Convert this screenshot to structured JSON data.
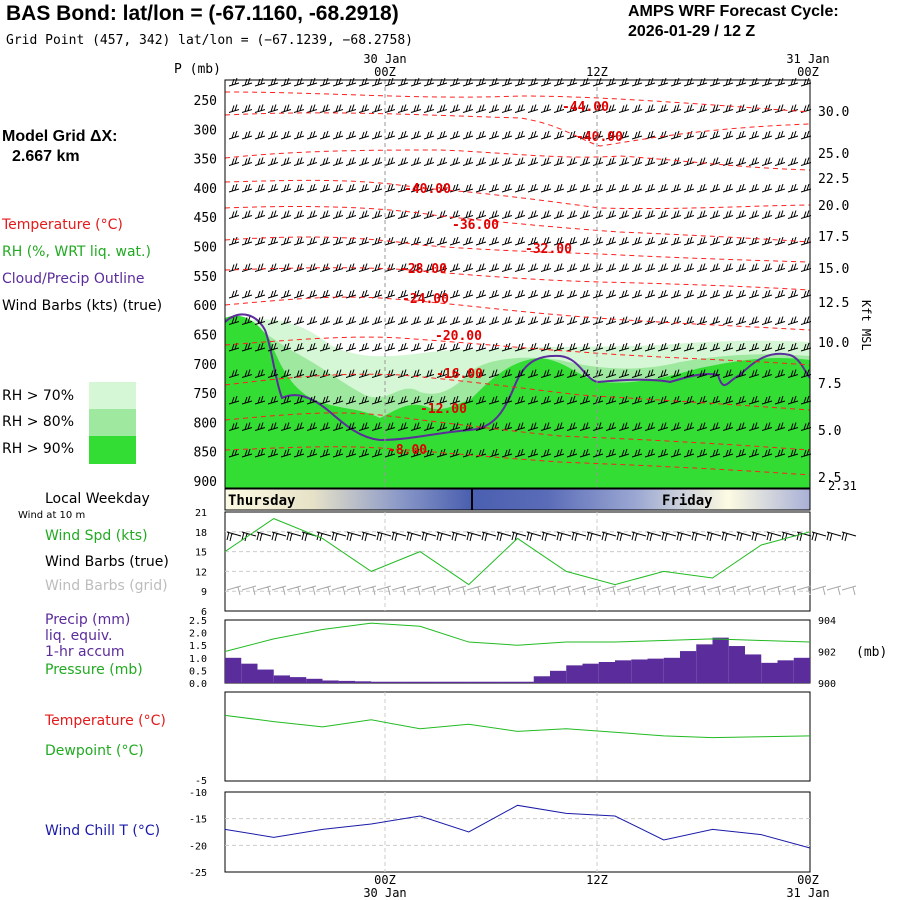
{
  "header": {
    "title": "BAS Bond:  lat/lon = (-67.1160, -68.2918)",
    "grid_point": "Grid Point (457, 342) lat/lon = (−67.1239, −68.2758)",
    "cycle_title": "AMPS WRF Forecast Cycle:",
    "cycle_value": "2026-01-29 / 12  Z"
  },
  "time_axis": {
    "top_dates": [
      "30 Jan",
      "31 Jan"
    ],
    "bottom_dates": [
      "30 Jan",
      "31 Jan"
    ],
    "ticks": [
      "00Z",
      "12Z",
      "00Z"
    ]
  },
  "model_grid": {
    "label": "Model Grid ΔX:",
    "value": "2.667 km"
  },
  "legend": {
    "temperature": "Temperature (°C)",
    "rh": "RH (%, WRT liq. wat.)",
    "cloud": "Cloud/Precip Outline",
    "wind": "Wind Barbs (kts) (true)",
    "rh70": "RH > 70%",
    "rh80": "RH > 80%",
    "rh90": "RH > 90%"
  },
  "colors": {
    "temperature": "#ff0000",
    "rh_line": "#22bb22",
    "cloud": "#5b2c9b",
    "rh70": "#d6f7d6",
    "rh80": "#9fe89f",
    "rh90": "#33dd33",
    "precip": "#5b2c9b",
    "windchill": "#1a1aa8"
  },
  "cross_section": {
    "p_label": "P (mb)",
    "right_label": "Kft MSL",
    "right_bottom_value": "2.31",
    "pressure_levels": [
      "250",
      "300",
      "350",
      "400",
      "450",
      "500",
      "550",
      "600",
      "650",
      "700",
      "750",
      "800",
      "850",
      "900"
    ],
    "height_ticks": [
      "30.0",
      "25.0",
      "22.5",
      "20.0",
      "17.5",
      "15.0",
      "12.5",
      "10.0",
      "7.5",
      "5.0",
      "2.5"
    ],
    "isotherm_labels": [
      "-44.00",
      "-40.00",
      "-40.00",
      "-36.00",
      "-32.00",
      "-28.00",
      "-24.00",
      "-20.00",
      "-16.00",
      "-12.00",
      "-8.00"
    ]
  },
  "weekday": {
    "label": "Local Weekday",
    "sub": "Wind at 10 m",
    "day1": "Thursday",
    "day2": "Friday"
  },
  "panel_wind": {
    "label1": "Wind Spd (kts)",
    "label2": "Wind Barbs (true)",
    "label3": "Wind Barbs (grid)",
    "yticks": [
      "21",
      "18",
      "15",
      "12",
      "9",
      "6"
    ]
  },
  "panel_precip": {
    "label1": "Precip (mm)",
    "label2": "liq. equiv.",
    "label3": "1-hr accum",
    "label4": "Pressure (mb)",
    "yticks": [
      "2.5",
      "2.0",
      "1.5",
      "1.0",
      "0.5",
      "0.0"
    ],
    "right_ticks": [
      "904",
      "902",
      "900"
    ],
    "right_unit": "(mb)"
  },
  "panel_temp": {
    "label1": "Temperature (°C)",
    "label2": "Dewpoint (°C)",
    "ytick": "-5"
  },
  "panel_chill": {
    "label": "Wind Chill T (°C)",
    "yticks": [
      "-10",
      "-15",
      "-20",
      "-25"
    ]
  },
  "chart_data": {
    "type": "line",
    "forecast_hours": [
      0,
      3,
      6,
      9,
      12,
      15,
      18,
      21,
      24,
      27,
      30,
      33,
      36
    ],
    "wind_speed_kts": [
      15,
      20,
      17,
      12,
      15,
      10,
      17,
      12,
      10,
      12,
      11,
      16,
      18
    ],
    "precip_mm": [
      1.0,
      0.3,
      0.1,
      0.05,
      0.05,
      0.05,
      0.05,
      0.7,
      0.9,
      1.0,
      1.8,
      0.8,
      1.1
    ],
    "pressure_mb": [
      902.0,
      902.8,
      903.4,
      903.8,
      903.6,
      902.6,
      902.4,
      902.6,
      902.6,
      902.7,
      902.8,
      902.7,
      902.6
    ],
    "temperature_c": [
      -5.5,
      -6.2,
      -6.8,
      -6.0,
      -7.0,
      -6.5,
      -7.3,
      -7.0,
      -7.4,
      -7.8,
      -8.0,
      -7.9,
      -7.8
    ],
    "dewpoint_c": [
      -5.5,
      -6.2,
      -6.8,
      -6.0,
      -7.0,
      -6.5,
      -7.3,
      -7.0,
      -7.4,
      -7.8,
      -8.0,
      -7.9,
      -7.8
    ],
    "wind_chill_c": [
      -17,
      -18.5,
      -17,
      -16,
      -14.5,
      -17.5,
      -12.5,
      -14,
      -14.5,
      -19,
      -17,
      -18,
      -20.5
    ],
    "wind_ylim": [
      6,
      21
    ],
    "precip_ylim": [
      0,
      2.5
    ],
    "pressure_ylim": [
      900,
      904
    ],
    "chill_ylim": [
      -25,
      -10
    ]
  }
}
